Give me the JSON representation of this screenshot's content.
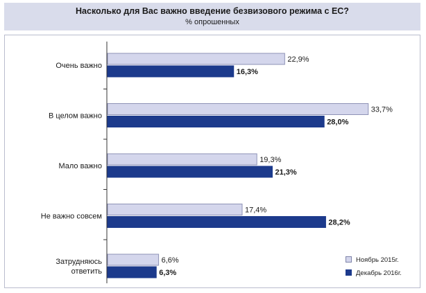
{
  "chart_data": {
    "type": "bar",
    "orientation": "horizontal",
    "title": "Насколько для Вас важно введение безвизового режима с ЕС?",
    "subtitle": "% опрошенных",
    "categories": [
      [
        "Очень важно"
      ],
      [
        "В целом важно"
      ],
      [
        "Мало важно"
      ],
      [
        "Не важно совсем"
      ],
      [
        "Затрудняюсь",
        "ответить"
      ]
    ],
    "series": [
      {
        "name": "Ноябрь 2015г.",
        "values": [
          22.9,
          33.7,
          19.3,
          17.4,
          6.6
        ],
        "labels": [
          "22,9%",
          "33,7%",
          "19,3%",
          "17,4%",
          "6,6%"
        ],
        "color": "#d4d6ec",
        "label_bold": false
      },
      {
        "name": "Декабрь 2016г.",
        "values": [
          16.3,
          28.0,
          21.3,
          28.2,
          6.3
        ],
        "labels": [
          "16,3%",
          "28,0%",
          "21,3%",
          "28,2%",
          "6,3%"
        ],
        "color": "#1c3a8c",
        "label_bold": true
      }
    ],
    "xlim": [
      0,
      40
    ],
    "grid": false,
    "legend_position": "bottom-right"
  }
}
